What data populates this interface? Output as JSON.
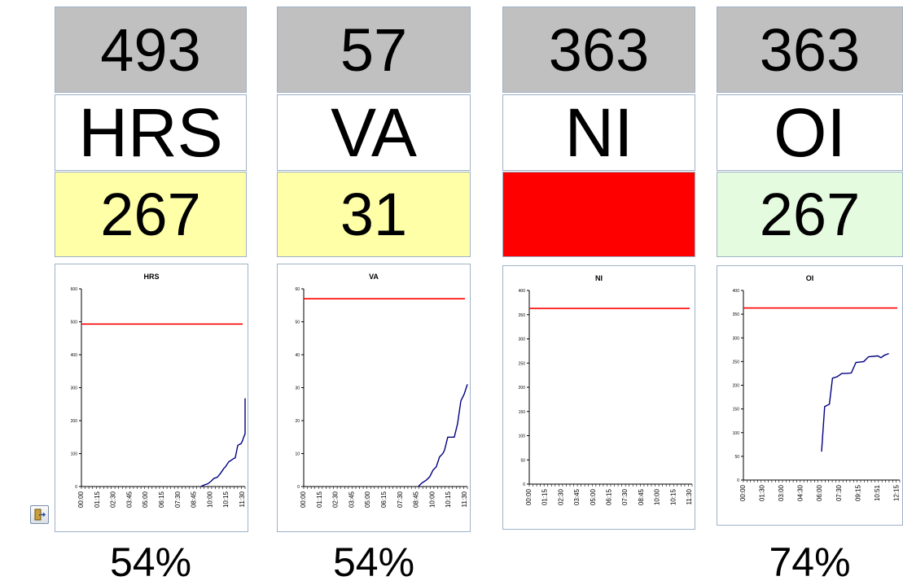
{
  "panels": [
    {
      "target": "493",
      "label": "HRS",
      "actual": "267",
      "actual_color": "#ffffa8",
      "percent": "54%"
    },
    {
      "target": "57",
      "label": "VA",
      "actual": "31",
      "actual_color": "#ffffa8",
      "percent": "54%"
    },
    {
      "target": "363",
      "label": "NI",
      "actual": "",
      "actual_color": "#ff0000",
      "percent": ""
    },
    {
      "target": "363",
      "label": "OI",
      "actual": "267",
      "actual_color": "#e4fbe0",
      "percent": "74%"
    }
  ],
  "exit_button": {
    "icon": "exit-door-icon"
  },
  "chart_data": [
    {
      "type": "line",
      "title": "HRS",
      "ylim": [
        0,
        600
      ],
      "yticks": [
        0,
        100,
        200,
        300,
        400,
        500,
        600
      ],
      "categories": [
        "00:00",
        "01:15",
        "02:30",
        "03:45",
        "05:00",
        "06:15",
        "07:30",
        "08:45",
        "10:00",
        "10:15",
        "11:30"
      ],
      "target_line": {
        "value": 493,
        "color": "#ff0000"
      },
      "series": [
        {
          "color": "#000080",
          "points": [
            [
              0.73,
              0
            ],
            [
              0.75,
              5
            ],
            [
              0.77,
              8
            ],
            [
              0.79,
              15
            ],
            [
              0.81,
              25
            ],
            [
              0.83,
              28
            ],
            [
              0.85,
              40
            ],
            [
              0.87,
              55
            ],
            [
              0.88,
              60
            ],
            [
              0.9,
              75
            ],
            [
              0.91,
              78
            ],
            [
              0.93,
              85
            ],
            [
              0.94,
              87
            ],
            [
              0.955,
              125
            ],
            [
              0.965,
              128
            ],
            [
              0.975,
              130
            ],
            [
              0.985,
              140
            ],
            [
              0.99,
              148
            ],
            [
              1.0,
              160
            ],
            [
              1.02,
              210
            ],
            [
              1.04,
              240
            ],
            [
              1.06,
              268
            ]
          ]
        }
      ]
    },
    {
      "type": "line",
      "title": "VA",
      "ylim": [
        0,
        60
      ],
      "yticks": [
        0,
        10,
        20,
        30,
        40,
        50,
        60
      ],
      "categories": [
        "00:00",
        "01:15",
        "02:30",
        "03:45",
        "05:00",
        "06:15",
        "07:30",
        "08:45",
        "10:00",
        "10:15",
        "11:30"
      ],
      "target_line": {
        "value": 57,
        "color": "#ff0000"
      },
      "series": [
        {
          "color": "#000080",
          "points": [
            [
              0.7,
              0
            ],
            [
              0.72,
              1
            ],
            [
              0.75,
              2
            ],
            [
              0.77,
              3
            ],
            [
              0.79,
              5
            ],
            [
              0.81,
              6
            ],
            [
              0.83,
              9
            ],
            [
              0.85,
              10
            ],
            [
              0.86,
              11
            ],
            [
              0.88,
              15
            ],
            [
              0.9,
              15
            ],
            [
              0.92,
              15
            ],
            [
              0.94,
              19
            ],
            [
              0.96,
              26
            ],
            [
              0.98,
              28
            ],
            [
              1.0,
              31
            ]
          ]
        }
      ]
    },
    {
      "type": "line",
      "title": "NI",
      "ylim": [
        0,
        400
      ],
      "yticks": [
        0,
        50,
        100,
        150,
        200,
        250,
        300,
        350,
        400
      ],
      "categories": [
        "00:00",
        "01:15",
        "02:30",
        "03:45",
        "05:00",
        "06:15",
        "07:30",
        "08:45",
        "10:00",
        "10:15",
        "11:30"
      ],
      "target_line": {
        "value": 363,
        "color": "#ff0000"
      },
      "series": []
    },
    {
      "type": "line",
      "title": "OI",
      "ylim": [
        0,
        400
      ],
      "yticks": [
        0,
        50,
        100,
        150,
        200,
        250,
        300,
        350,
        400
      ],
      "categories": [
        "00:00",
        "01:30",
        "03:00",
        "04:30",
        "06:00",
        "07:30",
        "09:15",
        "10:51",
        "12:15"
      ],
      "target_line": {
        "value": 363,
        "color": "#ff0000"
      },
      "series": [
        {
          "color": "#000080",
          "points": [
            [
              0.5,
              60
            ],
            [
              0.52,
              155
            ],
            [
              0.55,
              160
            ],
            [
              0.57,
              215
            ],
            [
              0.6,
              218
            ],
            [
              0.63,
              225
            ],
            [
              0.66,
              225
            ],
            [
              0.69,
              226
            ],
            [
              0.72,
              248
            ],
            [
              0.77,
              250
            ],
            [
              0.8,
              260
            ],
            [
              0.86,
              262
            ],
            [
              0.88,
              258
            ],
            [
              0.9,
              263
            ],
            [
              0.93,
              267
            ]
          ]
        }
      ]
    }
  ]
}
